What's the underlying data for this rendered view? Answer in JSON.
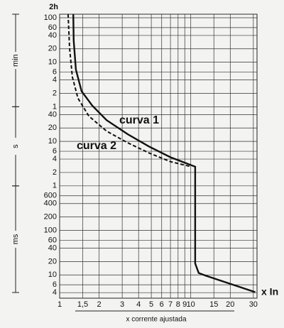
{
  "chart_data": {
    "type": "line",
    "x_label": "x corrente ajustada",
    "x_unit": "x In",
    "unit_groups": [
      "min",
      "s",
      "ms"
    ],
    "xscale": "log",
    "yscale": "log",
    "grid": true,
    "xlim": [
      1,
      32
    ],
    "xticks": [
      1,
      {
        "value": 1.5,
        "label": "1,5"
      },
      2,
      3,
      4,
      5,
      6,
      7,
      8,
      9,
      10,
      15,
      20,
      30
    ],
    "ylim": [
      0.003,
      7200
    ],
    "yticks": [
      {
        "value": 7200,
        "label": "2h"
      },
      {
        "value": 6000,
        "label": "100"
      },
      {
        "value": 3600,
        "label": "60"
      },
      {
        "value": 2400,
        "label": "40"
      },
      {
        "value": 1200,
        "label": "20"
      },
      {
        "value": 600,
        "label": "10"
      },
      {
        "value": 360,
        "label": "6"
      },
      {
        "value": 240,
        "label": "4"
      },
      {
        "value": 120,
        "label": "2"
      },
      {
        "value": 60,
        "label": "1"
      },
      40,
      20,
      10,
      6,
      4,
      2,
      1,
      {
        "value": 0.6,
        "label": "600"
      },
      {
        "value": 0.4,
        "label": "400"
      },
      {
        "value": 0.2,
        "label": "200"
      },
      {
        "value": 0.1,
        "label": "100"
      },
      {
        "value": 0.06,
        "label": "60"
      },
      {
        "value": 0.04,
        "label": "40"
      },
      {
        "value": 0.02,
        "label": "20"
      },
      {
        "value": 0.01,
        "label": "10"
      },
      {
        "value": 0.006,
        "label": "6"
      },
      {
        "value": 0.004,
        "label": "4"
      }
    ],
    "series": [
      {
        "name": "curva 1",
        "color": "#111111",
        "dash": false,
        "x": [
          1.27,
          1.28,
          1.33,
          1.47,
          1.77,
          2.28,
          3.3,
          4.8,
          7.0,
          10.8,
          10.8,
          11.5,
          13,
          31
        ],
        "values": [
          7200,
          1820,
          410,
          134,
          64,
          30,
          14.5,
          7.7,
          4.4,
          2.7,
          0.018,
          0.011,
          0.0096,
          0.0041
        ]
      },
      {
        "name": "curva 2",
        "color": "#111111",
        "dash": true,
        "x": [
          1.16,
          1.19,
          1.25,
          1.38,
          1.67,
          2.28,
          3.3,
          4.8,
          7.0,
          10.1
        ],
        "values": [
          7200,
          1250,
          280,
          93,
          37,
          17,
          9.3,
          5.5,
          3.5,
          2.7
        ]
      }
    ]
  }
}
